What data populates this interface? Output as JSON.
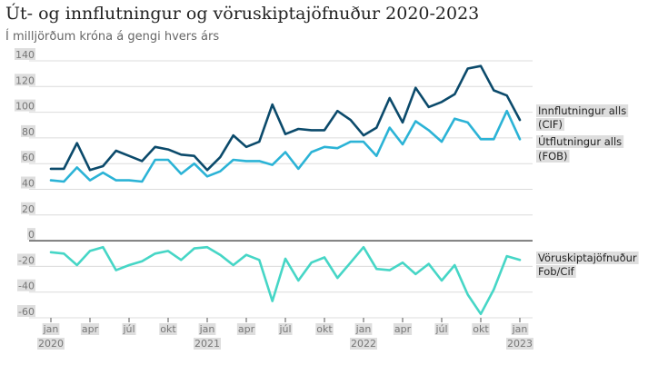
{
  "title": "Út- og innflutningur og vöruskiptajöfnuður 2020-2023",
  "subtitle": "Í milljörðum króna á gengi hvers árs",
  "chart_data": {
    "type": "line",
    "x": [
      "2020-01",
      "2020-02",
      "2020-03",
      "2020-04",
      "2020-05",
      "2020-06",
      "2020-07",
      "2020-08",
      "2020-09",
      "2020-10",
      "2020-11",
      "2020-12",
      "2021-01",
      "2021-02",
      "2021-03",
      "2021-04",
      "2021-05",
      "2021-06",
      "2021-07",
      "2021-08",
      "2021-09",
      "2021-10",
      "2021-11",
      "2021-12",
      "2022-01",
      "2022-02",
      "2022-03",
      "2022-04",
      "2022-05",
      "2022-06",
      "2022-07",
      "2022-08",
      "2022-09",
      "2022-10",
      "2022-11",
      "2022-12",
      "2023-01"
    ],
    "series": [
      {
        "name": "Innflutningur alls (CIF)",
        "color": "#0b4a6b",
        "values": [
          56,
          56,
          76,
          55,
          58,
          70,
          66,
          62,
          73,
          71,
          67,
          66,
          55,
          65,
          82,
          73,
          77,
          106,
          83,
          87,
          86,
          86,
          101,
          94,
          82,
          88,
          111,
          92,
          119,
          104,
          108,
          114,
          134,
          136,
          117,
          113,
          94
        ]
      },
      {
        "name": "Útflutningur alls (FOB)",
        "color": "#2bb3d6",
        "values": [
          47,
          46,
          57,
          47,
          53,
          47,
          47,
          46,
          63,
          63,
          52,
          60,
          50,
          54,
          63,
          62,
          62,
          59,
          69,
          56,
          69,
          73,
          72,
          77,
          77,
          66,
          88,
          75,
          93,
          86,
          77,
          95,
          92,
          79,
          79,
          101,
          79
        ]
      },
      {
        "name": "Vöruskiptajöfnuður Fob/Cif",
        "color": "#46d6c6",
        "values": [
          -9,
          -10,
          -19,
          -8,
          -5,
          -23,
          -19,
          -16,
          -10,
          -8,
          -15,
          -6,
          -5,
          -11,
          -19,
          -11,
          -15,
          -47,
          -14,
          -31,
          -17,
          -13,
          -29,
          -17,
          -5,
          -22,
          -23,
          -17,
          -26,
          -18,
          -31,
          -19,
          -42,
          -57,
          -38,
          -12,
          -15
        ]
      }
    ],
    "ylim": [
      -60,
      140
    ],
    "yticks": [
      -60,
      -40,
      -20,
      0,
      20,
      40,
      60,
      80,
      100,
      120,
      140
    ],
    "grid": true,
    "legend_placement": "right, next to line ends",
    "xticks": [
      {
        "index": 0,
        "label": "jan",
        "year": "2020"
      },
      {
        "index": 3,
        "label": "apr",
        "year": ""
      },
      {
        "index": 6,
        "label": "júl",
        "year": ""
      },
      {
        "index": 9,
        "label": "okt",
        "year": ""
      },
      {
        "index": 12,
        "label": "jan",
        "year": "2021"
      },
      {
        "index": 15,
        "label": "apr",
        "year": ""
      },
      {
        "index": 18,
        "label": "júl",
        "year": ""
      },
      {
        "index": 21,
        "label": "okt",
        "year": ""
      },
      {
        "index": 24,
        "label": "jan",
        "year": "2022"
      },
      {
        "index": 27,
        "label": "apr",
        "year": ""
      },
      {
        "index": 30,
        "label": "júl",
        "year": ""
      },
      {
        "index": 33,
        "label": "okt",
        "year": ""
      },
      {
        "index": 36,
        "label": "jan",
        "year": "2023"
      }
    ],
    "legend": [
      {
        "series": 0,
        "lines": [
          "Innflutningur alls",
          "(CIF)"
        ]
      },
      {
        "series": 1,
        "lines": [
          "Útflutningur alls",
          "(FOB)"
        ]
      },
      {
        "series": 2,
        "lines": [
          "Vöruskiptajöfnuður",
          "Fob/Cif"
        ]
      }
    ]
  }
}
